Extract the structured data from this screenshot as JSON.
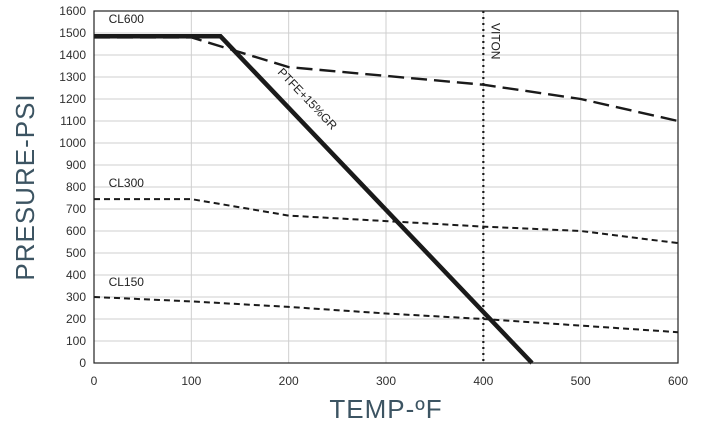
{
  "chart_data": {
    "type": "line",
    "xlabel": "TEMP-ºF",
    "ylabel": "PRESURE-PSI",
    "xlim": [
      0,
      600
    ],
    "ylim": [
      0,
      1600
    ],
    "x_ticks": [
      0,
      100,
      200,
      300,
      400,
      500,
      600
    ],
    "y_ticks": [
      0,
      100,
      200,
      300,
      400,
      500,
      600,
      700,
      800,
      900,
      1000,
      1100,
      1200,
      1300,
      1400,
      1500,
      1600
    ],
    "grid": true,
    "series": [
      {
        "name": "CL600",
        "style": "long-dash",
        "color": "#1a1a1a",
        "points": [
          [
            0,
            1480
          ],
          [
            100,
            1480
          ],
          [
            200,
            1345
          ],
          [
            300,
            1305
          ],
          [
            400,
            1265
          ],
          [
            500,
            1200
          ],
          [
            600,
            1100
          ]
        ]
      },
      {
        "name": "CL300",
        "style": "short-dash",
        "color": "#1a1a1a",
        "points": [
          [
            0,
            745
          ],
          [
            100,
            745
          ],
          [
            200,
            670
          ],
          [
            300,
            645
          ],
          [
            400,
            620
          ],
          [
            500,
            600
          ],
          [
            600,
            545
          ]
        ]
      },
      {
        "name": "CL150",
        "style": "short-dash",
        "color": "#1a1a1a",
        "points": [
          [
            0,
            300
          ],
          [
            100,
            280
          ],
          [
            200,
            255
          ],
          [
            300,
            225
          ],
          [
            400,
            200
          ],
          [
            500,
            170
          ],
          [
            600,
            140
          ]
        ]
      },
      {
        "name": "PTFE+15%GR",
        "style": "solid-thick",
        "color": "#1a1a1a",
        "points": [
          [
            0,
            1485
          ],
          [
            130,
            1485
          ],
          [
            450,
            0
          ]
        ]
      }
    ],
    "vertical_lines": [
      {
        "name": "VITON",
        "x": 400,
        "style": "dotted"
      }
    ],
    "annotations": [
      {
        "name": "CL600",
        "x": 15,
        "y": 1545
      },
      {
        "name": "CL300",
        "x": 15,
        "y": 800
      },
      {
        "name": "CL150",
        "x": 15,
        "y": 350
      }
    ]
  }
}
